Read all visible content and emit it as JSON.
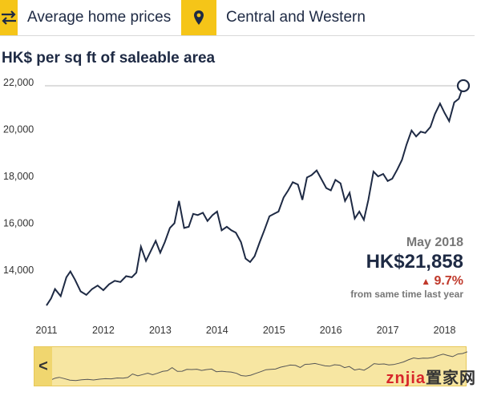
{
  "topbar": {
    "metric_label": "Average home prices",
    "district_label": "Central and Western",
    "metric_icon": "swap-arrows-icon",
    "district_icon": "map-pin-icon"
  },
  "colors": {
    "accent": "#f5c518",
    "line": "#1e2a44",
    "change_up": "#c0392b",
    "navigator_bg": "#f7e6a2"
  },
  "chart_data": {
    "type": "line",
    "title": "HK$ per sq ft of saleable area",
    "xlabel": "",
    "ylabel": "",
    "x_tick_labels": [
      "2011",
      "2012",
      "2013",
      "2014",
      "2015",
      "2016",
      "2017",
      "2018"
    ],
    "y_tick_labels": [
      "22,000",
      "20,000",
      "18,000",
      "16,000",
      "14,000"
    ],
    "ylim": [
      12400,
      22300
    ],
    "grid": false,
    "series": [
      {
        "values": [
          [
            2011.0,
            12500
          ],
          [
            2011.08,
            12800
          ],
          [
            2011.15,
            13200
          ],
          [
            2011.25,
            12900
          ],
          [
            2011.35,
            13700
          ],
          [
            2011.42,
            13950
          ],
          [
            2011.5,
            13600
          ],
          [
            2011.6,
            13100
          ],
          [
            2011.7,
            12950
          ],
          [
            2011.8,
            13200
          ],
          [
            2011.9,
            13350
          ],
          [
            2012.0,
            13150
          ],
          [
            2012.1,
            13400
          ],
          [
            2012.2,
            13550
          ],
          [
            2012.3,
            13500
          ],
          [
            2012.4,
            13750
          ],
          [
            2012.5,
            13700
          ],
          [
            2012.58,
            13900
          ],
          [
            2012.66,
            15000
          ],
          [
            2012.75,
            14400
          ],
          [
            2012.83,
            14800
          ],
          [
            2012.92,
            15250
          ],
          [
            2013.0,
            14750
          ],
          [
            2013.08,
            15200
          ],
          [
            2013.17,
            15800
          ],
          [
            2013.25,
            16000
          ],
          [
            2013.33,
            16950
          ],
          [
            2013.42,
            15800
          ],
          [
            2013.5,
            15850
          ],
          [
            2013.58,
            16400
          ],
          [
            2013.66,
            16350
          ],
          [
            2013.75,
            16450
          ],
          [
            2013.83,
            16100
          ],
          [
            2013.92,
            16350
          ],
          [
            2014.0,
            16500
          ],
          [
            2014.08,
            15700
          ],
          [
            2014.17,
            15850
          ],
          [
            2014.25,
            15700
          ],
          [
            2014.33,
            15600
          ],
          [
            2014.42,
            15200
          ],
          [
            2014.5,
            14500
          ],
          [
            2014.58,
            14350
          ],
          [
            2014.66,
            14600
          ],
          [
            2014.75,
            15200
          ],
          [
            2014.83,
            15700
          ],
          [
            2014.92,
            16300
          ],
          [
            2015.0,
            16400
          ],
          [
            2015.08,
            16500
          ],
          [
            2015.17,
            17100
          ],
          [
            2015.25,
            17400
          ],
          [
            2015.33,
            17750
          ],
          [
            2015.42,
            17650
          ],
          [
            2015.5,
            17000
          ],
          [
            2015.58,
            17950
          ],
          [
            2015.66,
            18050
          ],
          [
            2015.75,
            18250
          ],
          [
            2015.83,
            17900
          ],
          [
            2015.92,
            17500
          ],
          [
            2016.0,
            17400
          ],
          [
            2016.08,
            17850
          ],
          [
            2016.17,
            17700
          ],
          [
            2016.25,
            16950
          ],
          [
            2016.33,
            17300
          ],
          [
            2016.42,
            16200
          ],
          [
            2016.5,
            16500
          ],
          [
            2016.58,
            16150
          ],
          [
            2016.66,
            17000
          ],
          [
            2016.75,
            18200
          ],
          [
            2016.83,
            18000
          ],
          [
            2016.92,
            18100
          ],
          [
            2017.0,
            17800
          ],
          [
            2017.08,
            17900
          ],
          [
            2017.17,
            18300
          ],
          [
            2017.25,
            18700
          ],
          [
            2017.33,
            19350
          ],
          [
            2017.42,
            19950
          ],
          [
            2017.5,
            19700
          ],
          [
            2017.58,
            19900
          ],
          [
            2017.66,
            19850
          ],
          [
            2017.75,
            20100
          ],
          [
            2017.83,
            20650
          ],
          [
            2017.92,
            21100
          ],
          [
            2018.0,
            20700
          ],
          [
            2018.08,
            20350
          ],
          [
            2018.17,
            21150
          ],
          [
            2018.25,
            21300
          ],
          [
            2018.33,
            21858
          ]
        ]
      }
    ],
    "callout": {
      "date": "May 2018",
      "value": "HK$21,858",
      "change": "9.7%",
      "change_direction": "up",
      "change_note": "from same time last year"
    }
  },
  "navigator": {
    "left_label": "<"
  },
  "watermark": {
    "brand": "znjia",
    "suffix": "置家网"
  }
}
